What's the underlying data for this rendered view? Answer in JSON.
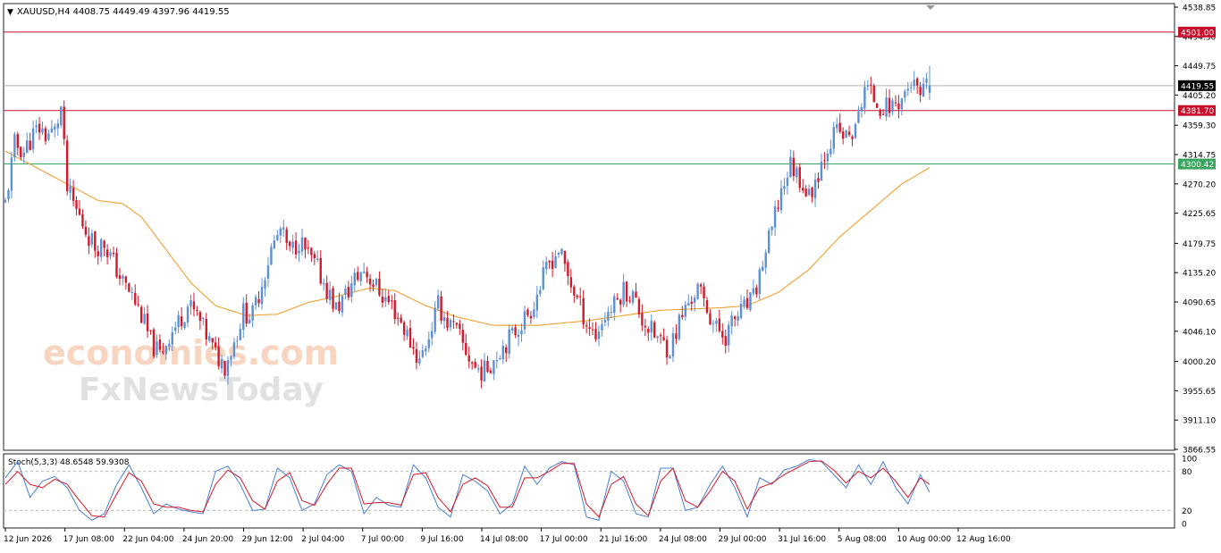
{
  "chart_data": [
    {
      "type": "candlestick",
      "symbol": "XAUUSD,H4",
      "ohlc": {
        "open": "4408.75",
        "high": "4449.49",
        "low": "4397.96",
        "close": "4419.55"
      },
      "header_text": "XAUUSD,H4  4408.75 4449.49 4397.96 4419.55",
      "y_range": [
        3866.55,
        4538.85
      ],
      "y_ticks": [
        "4538.85",
        "4494.30",
        "4449.75",
        "4405.20",
        "4359.30",
        "4314.75",
        "4270.20",
        "4225.65",
        "4179.75",
        "4135.20",
        "4090.65",
        "4046.10",
        "4000.20",
        "3955.65",
        "3911.10",
        "3866.55"
      ],
      "x_ticks": [
        "12 Jun 2026",
        "17 Jun 08:00",
        "22 Jun 04:00",
        "24 Jun 20:00",
        "29 Jun 12:00",
        "2 Jul 04:00",
        "7 Jul 00:00",
        "9 Jul 16:00",
        "14 Jul 08:00",
        "17 Jul 00:00",
        "21 Jul 16:00",
        "24 Jul 08:00",
        "29 Jul 00:00",
        "31 Jul 16:00",
        "5 Aug 08:00",
        "10 Aug 00:00",
        "12 Aug 16:00"
      ],
      "levels": [
        {
          "value": 4501.0,
          "label": "4501.00",
          "color": "#c8102e"
        },
        {
          "value": 4381.7,
          "label": "4381.70",
          "color": "#c8102e"
        },
        {
          "value": 4300.42,
          "label": "4300.42",
          "color": "#3aa55e"
        }
      ],
      "current_price": {
        "value": 4419.55,
        "label": "4419.55"
      },
      "bull_color": "#5b8fd6",
      "bear_color": "#d3192a",
      "ma_color": "#f0a030",
      "close_path": [
        [
          0,
          4240
        ],
        [
          3,
          4330
        ],
        [
          6,
          4320
        ],
        [
          9,
          4345
        ],
        [
          11,
          4355
        ],
        [
          13,
          4345
        ],
        [
          16,
          4350
        ],
        [
          18,
          4385
        ],
        [
          20,
          4260
        ],
        [
          23,
          4230
        ],
        [
          26,
          4200
        ],
        [
          29,
          4175
        ],
        [
          32,
          4180
        ],
        [
          35,
          4150
        ],
        [
          38,
          4120
        ],
        [
          41,
          4100
        ],
        [
          44,
          4070
        ],
        [
          47,
          4030
        ],
        [
          50,
          4010
        ],
        [
          53,
          4040
        ],
        [
          56,
          4060
        ],
        [
          59,
          4085
        ],
        [
          62,
          4070
        ],
        [
          65,
          4040
        ],
        [
          68,
          4010
        ],
        [
          71,
          3995
        ],
        [
          74,
          4030
        ],
        [
          77,
          4075
        ],
        [
          80,
          4070
        ],
        [
          83,
          4120
        ],
        [
          86,
          4170
        ],
        [
          89,
          4200
        ],
        [
          92,
          4165
        ],
        [
          95,
          4185
        ],
        [
          98,
          4160
        ],
        [
          101,
          4140
        ],
        [
          104,
          4110
        ],
        [
          107,
          4080
        ],
        [
          110,
          4100
        ],
        [
          113,
          4125
        ],
        [
          116,
          4140
        ],
        [
          119,
          4120
        ],
        [
          122,
          4100
        ],
        [
          125,
          4085
        ],
        [
          128,
          4060
        ],
        [
          131,
          4030
        ],
        [
          134,
          4000
        ],
        [
          137,
          4040
        ],
        [
          140,
          4085
        ],
        [
          143,
          4060
        ],
        [
          146,
          4045
        ],
        [
          149,
          4015
        ],
        [
          152,
          3990
        ],
        [
          155,
          3985
        ],
        [
          158,
          4005
        ],
        [
          161,
          4025
        ],
        [
          164,
          4040
        ],
        [
          167,
          4060
        ],
        [
          170,
          4080
        ],
        [
          173,
          4115
        ],
        [
          176,
          4150
        ],
        [
          179,
          4170
        ],
        [
          182,
          4130
        ],
        [
          185,
          4095
        ],
        [
          188,
          4060
        ],
        [
          191,
          4040
        ],
        [
          194,
          4070
        ],
        [
          197,
          4085
        ],
        [
          200,
          4110
        ],
        [
          203,
          4100
        ],
        [
          206,
          4065
        ],
        [
          209,
          4045
        ],
        [
          212,
          4030
        ],
        [
          215,
          4020
        ],
        [
          218,
          4060
        ],
        [
          221,
          4090
        ],
        [
          224,
          4110
        ],
        [
          227,
          4080
        ],
        [
          230,
          4050
        ],
        [
          233,
          4040
        ],
        [
          236,
          4065
        ],
        [
          239,
          4080
        ],
        [
          242,
          4095
        ],
        [
          245,
          4150
        ],
        [
          248,
          4200
        ],
        [
          251,
          4260
        ],
        [
          254,
          4300
        ],
        [
          257,
          4280
        ],
        [
          260,
          4250
        ],
        [
          263,
          4290
        ],
        [
          266,
          4330
        ],
        [
          269,
          4350
        ],
        [
          272,
          4340
        ],
        [
          275,
          4350
        ],
        [
          278,
          4420
        ],
        [
          281,
          4400
        ],
        [
          284,
          4385
        ],
        [
          287,
          4390
        ],
        [
          290,
          4400
        ],
        [
          293,
          4425
        ],
        [
          296,
          4400
        ],
        [
          299,
          4420
        ]
      ],
      "ma_path": [
        [
          0,
          4320
        ],
        [
          12,
          4290
        ],
        [
          22,
          4265
        ],
        [
          30,
          4245
        ],
        [
          38,
          4240
        ],
        [
          44,
          4220
        ],
        [
          52,
          4170
        ],
        [
          60,
          4120
        ],
        [
          68,
          4085
        ],
        [
          78,
          4070
        ],
        [
          88,
          4072
        ],
        [
          98,
          4090
        ],
        [
          108,
          4100
        ],
        [
          118,
          4112
        ],
        [
          126,
          4108
        ],
        [
          136,
          4085
        ],
        [
          146,
          4068
        ],
        [
          158,
          4055
        ],
        [
          172,
          4055
        ],
        [
          188,
          4062
        ],
        [
          200,
          4070
        ],
        [
          212,
          4078
        ],
        [
          222,
          4080
        ],
        [
          232,
          4082
        ],
        [
          240,
          4085
        ],
        [
          250,
          4105
        ],
        [
          260,
          4140
        ],
        [
          270,
          4190
        ],
        [
          280,
          4230
        ],
        [
          290,
          4270
        ],
        [
          299,
          4295
        ]
      ],
      "seed": 11
    },
    {
      "type": "line",
      "indicator_label": "Stoch(5,3,3) 48.6548 59.9308",
      "y_range": [
        0,
        100
      ],
      "y_ticks": [
        "100",
        "80",
        "20",
        "0"
      ],
      "levels": [
        80,
        20
      ],
      "series": [
        {
          "name": "main",
          "color": "#4a7fd0"
        },
        {
          "name": "signal",
          "color": "#d3192a"
        }
      ],
      "main_path": [
        [
          0,
          70
        ],
        [
          4,
          95
        ],
        [
          8,
          40
        ],
        [
          12,
          65
        ],
        [
          16,
          72
        ],
        [
          20,
          55
        ],
        [
          24,
          20
        ],
        [
          28,
          5
        ],
        [
          32,
          15
        ],
        [
          36,
          60
        ],
        [
          40,
          90
        ],
        [
          44,
          55
        ],
        [
          48,
          15
        ],
        [
          52,
          30
        ],
        [
          56,
          22
        ],
        [
          60,
          18
        ],
        [
          64,
          15
        ],
        [
          68,
          80
        ],
        [
          72,
          88
        ],
        [
          76,
          60
        ],
        [
          80,
          20
        ],
        [
          84,
          22
        ],
        [
          88,
          85
        ],
        [
          92,
          70
        ],
        [
          96,
          20
        ],
        [
          100,
          30
        ],
        [
          104,
          75
        ],
        [
          108,
          90
        ],
        [
          112,
          80
        ],
        [
          116,
          15
        ],
        [
          120,
          40
        ],
        [
          124,
          28
        ],
        [
          128,
          25
        ],
        [
          132,
          90
        ],
        [
          136,
          70
        ],
        [
          140,
          25
        ],
        [
          144,
          10
        ],
        [
          148,
          75
        ],
        [
          152,
          65
        ],
        [
          156,
          50
        ],
        [
          160,
          15
        ],
        [
          164,
          30
        ],
        [
          168,
          88
        ],
        [
          172,
          60
        ],
        [
          176,
          85
        ],
        [
          180,
          95
        ],
        [
          184,
          90
        ],
        [
          188,
          10
        ],
        [
          192,
          5
        ],
        [
          196,
          80
        ],
        [
          200,
          65
        ],
        [
          204,
          15
        ],
        [
          208,
          10
        ],
        [
          212,
          85
        ],
        [
          216,
          85
        ],
        [
          220,
          20
        ],
        [
          224,
          25
        ],
        [
          228,
          60
        ],
        [
          232,
          88
        ],
        [
          236,
          55
        ],
        [
          240,
          10
        ],
        [
          244,
          70
        ],
        [
          248,
          60
        ],
        [
          252,
          82
        ],
        [
          256,
          88
        ],
        [
          260,
          98
        ],
        [
          264,
          95
        ],
        [
          268,
          75
        ],
        [
          272,
          55
        ],
        [
          276,
          90
        ],
        [
          280,
          60
        ],
        [
          284,
          95
        ],
        [
          288,
          55
        ],
        [
          292,
          30
        ],
        [
          296,
          75
        ],
        [
          299,
          48
        ]
      ],
      "signal_path": [
        [
          0,
          60
        ],
        [
          4,
          80
        ],
        [
          8,
          60
        ],
        [
          12,
          55
        ],
        [
          16,
          68
        ],
        [
          20,
          60
        ],
        [
          24,
          35
        ],
        [
          28,
          12
        ],
        [
          32,
          10
        ],
        [
          36,
          45
        ],
        [
          40,
          78
        ],
        [
          44,
          65
        ],
        [
          48,
          30
        ],
        [
          52,
          25
        ],
        [
          56,
          25
        ],
        [
          60,
          20
        ],
        [
          64,
          18
        ],
        [
          68,
          60
        ],
        [
          72,
          82
        ],
        [
          76,
          70
        ],
        [
          80,
          35
        ],
        [
          84,
          22
        ],
        [
          88,
          65
        ],
        [
          92,
          78
        ],
        [
          96,
          35
        ],
        [
          100,
          28
        ],
        [
          104,
          60
        ],
        [
          108,
          85
        ],
        [
          112,
          85
        ],
        [
          116,
          30
        ],
        [
          120,
          32
        ],
        [
          124,
          32
        ],
        [
          128,
          28
        ],
        [
          132,
          75
        ],
        [
          136,
          78
        ],
        [
          140,
          40
        ],
        [
          144,
          18
        ],
        [
          148,
          60
        ],
        [
          152,
          70
        ],
        [
          156,
          58
        ],
        [
          160,
          25
        ],
        [
          164,
          25
        ],
        [
          168,
          70
        ],
        [
          172,
          70
        ],
        [
          176,
          80
        ],
        [
          180,
          92
        ],
        [
          184,
          92
        ],
        [
          188,
          30
        ],
        [
          192,
          10
        ],
        [
          196,
          60
        ],
        [
          200,
          72
        ],
        [
          204,
          30
        ],
        [
          208,
          12
        ],
        [
          212,
          65
        ],
        [
          216,
          85
        ],
        [
          220,
          35
        ],
        [
          224,
          25
        ],
        [
          228,
          50
        ],
        [
          232,
          80
        ],
        [
          236,
          65
        ],
        [
          240,
          22
        ],
        [
          244,
          55
        ],
        [
          248,
          62
        ],
        [
          252,
          75
        ],
        [
          256,
          85
        ],
        [
          260,
          95
        ],
        [
          264,
          96
        ],
        [
          268,
          82
        ],
        [
          272,
          62
        ],
        [
          276,
          80
        ],
        [
          280,
          70
        ],
        [
          284,
          85
        ],
        [
          288,
          65
        ],
        [
          292,
          40
        ],
        [
          296,
          70
        ],
        [
          299,
          60
        ]
      ]
    }
  ],
  "watermark": {
    "line1": "economies.com",
    "line2": "FxNewsToday"
  }
}
